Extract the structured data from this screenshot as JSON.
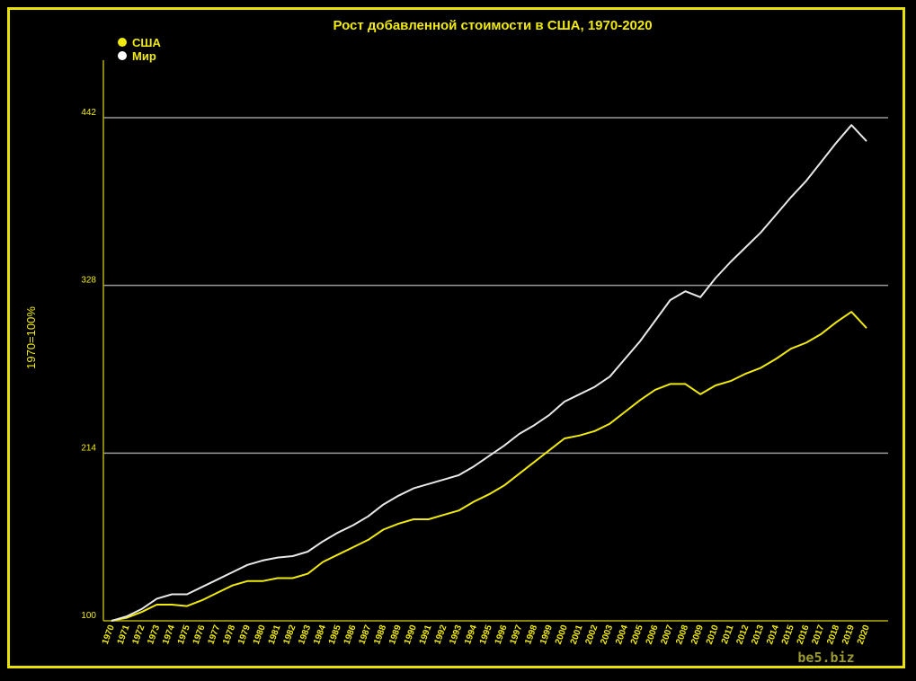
{
  "chart_data": {
    "type": "line",
    "title": "Рост добавленной стоимости в США, 1970-2020",
    "ylabel": "1970=100%",
    "xlabel": "",
    "ylim": [
      100,
      442
    ],
    "yticks": [
      100,
      214,
      328,
      442
    ],
    "grid": true,
    "legend_position": "top-left",
    "x": [
      1970,
      1971,
      1972,
      1973,
      1974,
      1975,
      1976,
      1977,
      1978,
      1979,
      1980,
      1981,
      1982,
      1983,
      1984,
      1985,
      1986,
      1987,
      1988,
      1989,
      1990,
      1991,
      1992,
      1993,
      1994,
      1995,
      1996,
      1997,
      1998,
      1999,
      2000,
      2001,
      2002,
      2003,
      2004,
      2005,
      2006,
      2007,
      2008,
      2009,
      2010,
      2011,
      2012,
      2013,
      2014,
      2015,
      2016,
      2017,
      2018,
      2019,
      2020
    ],
    "series": [
      {
        "name": "США",
        "color": "#f1ea0e",
        "values": [
          100,
          102,
          106,
          111,
          111,
          110,
          114,
          119,
          124,
          127,
          127,
          129,
          129,
          132,
          140,
          145,
          150,
          155,
          162,
          166,
          169,
          169,
          172,
          175,
          181,
          186,
          192,
          200,
          208,
          216,
          224,
          226,
          229,
          234,
          242,
          250,
          257,
          261,
          261,
          254,
          260,
          263,
          268,
          272,
          278,
          285,
          289,
          295,
          303,
          310,
          299
        ]
      },
      {
        "name": "Мир",
        "color": "#e8e8e8",
        "values": [
          100,
          103,
          108,
          115,
          118,
          118,
          123,
          128,
          133,
          138,
          141,
          143,
          144,
          147,
          154,
          160,
          165,
          171,
          179,
          185,
          190,
          193,
          196,
          199,
          205,
          212,
          219,
          227,
          233,
          240,
          249,
          254,
          259,
          266,
          278,
          290,
          304,
          318,
          324,
          320,
          333,
          344,
          354,
          364,
          376,
          388,
          399,
          412,
          425,
          437,
          426
        ]
      }
    ],
    "watermark": "be5.biz"
  }
}
